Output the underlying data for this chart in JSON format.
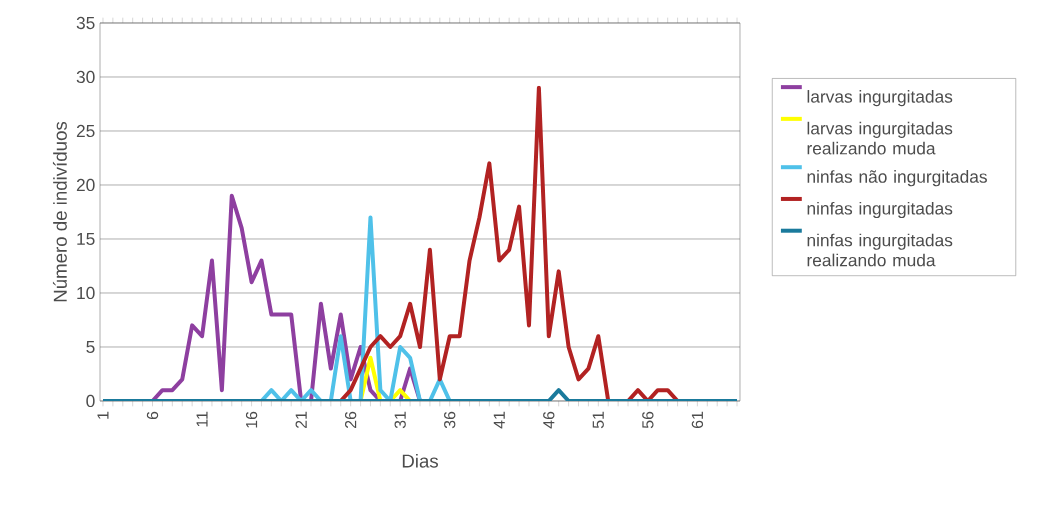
{
  "chart_data": {
    "type": "line",
    "xlabel": "Dias",
    "ylabel": "Número de indivíduos",
    "categories": [
      "1",
      null,
      null,
      null,
      null,
      "6",
      null,
      null,
      null,
      null,
      "11",
      null,
      null,
      null,
      null,
      "16",
      null,
      null,
      null,
      null,
      "21",
      null,
      null,
      null,
      null,
      "26",
      null,
      null,
      null,
      null,
      "31",
      null,
      null,
      null,
      null,
      "36",
      null,
      null,
      null,
      null,
      "41",
      null,
      null,
      null,
      null,
      "46",
      null,
      null,
      null,
      null,
      "51",
      null,
      null,
      null,
      null,
      "56",
      null,
      null,
      null,
      null,
      "61",
      null,
      null,
      null,
      null
    ],
    "ylim": [
      0,
      35
    ],
    "yticks": [
      0,
      5,
      10,
      15,
      20,
      25,
      30,
      35
    ],
    "grid": "y",
    "legend": "right",
    "series": [
      {
        "name": "larvas ingurgitadas",
        "color": "#8e3fa0",
        "values": [
          null,
          null,
          null,
          null,
          null,
          0,
          1,
          1,
          2,
          7,
          6,
          13,
          1,
          19,
          16,
          11,
          13,
          8,
          8,
          8,
          0,
          0,
          9,
          3,
          8,
          2,
          5,
          1,
          0,
          null,
          0,
          3,
          0,
          null,
          null,
          null,
          null,
          null,
          null,
          null,
          null,
          null,
          null,
          null,
          null,
          null,
          null,
          null,
          null,
          null,
          null,
          null,
          null,
          null,
          null,
          null,
          null,
          null,
          null,
          null,
          null,
          null,
          null,
          null,
          null
        ]
      },
      {
        "name": "larvas ingurgitadas realizando muda",
        "color": "#ffff00",
        "values": [
          null,
          null,
          null,
          null,
          null,
          null,
          null,
          null,
          null,
          null,
          null,
          null,
          null,
          null,
          null,
          null,
          null,
          null,
          null,
          null,
          null,
          null,
          null,
          null,
          null,
          null,
          0,
          4,
          0,
          0,
          1,
          0,
          null,
          null,
          null,
          null,
          null,
          null,
          null,
          null,
          null,
          null,
          null,
          null,
          null,
          null,
          null,
          null,
          null,
          null,
          null,
          null,
          null,
          null,
          null,
          null,
          null,
          null,
          null,
          null,
          null,
          null,
          null,
          null,
          null
        ]
      },
      {
        "name": "ninfas não ingurgitadas",
        "color": "#4fc1e9",
        "values": [
          null,
          null,
          null,
          null,
          null,
          null,
          null,
          null,
          null,
          null,
          null,
          null,
          null,
          null,
          null,
          null,
          0,
          1,
          0,
          1,
          0,
          1,
          0,
          0,
          6,
          0,
          0,
          17,
          1,
          0,
          5,
          4,
          0,
          0,
          2,
          0,
          null,
          null,
          null,
          null,
          null,
          null,
          null,
          null,
          null,
          null,
          null,
          null,
          null,
          null,
          null,
          null,
          null,
          null,
          null,
          null,
          null,
          null,
          null,
          null,
          null,
          null,
          null,
          null,
          null
        ]
      },
      {
        "name": "ninfas ingurgitadas",
        "color": "#b22222",
        "values": [
          null,
          null,
          null,
          null,
          null,
          null,
          null,
          null,
          null,
          null,
          null,
          null,
          null,
          null,
          null,
          null,
          null,
          null,
          null,
          null,
          null,
          null,
          null,
          null,
          0,
          1,
          3,
          5,
          6,
          5,
          6,
          9,
          5,
          14,
          2,
          6,
          6,
          13,
          17,
          22,
          13,
          14,
          18,
          7,
          29,
          6,
          12,
          5,
          2,
          3,
          6,
          0,
          null,
          0,
          1,
          0,
          1,
          1,
          0,
          null,
          null,
          null,
          null,
          null,
          null
        ]
      },
      {
        "name": "ninfas ingurgitadas realizando muda",
        "color": "#1a7a9c",
        "values": [
          0,
          0,
          0,
          0,
          0,
          0,
          0,
          0,
          0,
          0,
          0,
          0,
          0,
          0,
          0,
          0,
          0,
          0,
          0,
          0,
          0,
          0,
          0,
          0,
          0,
          0,
          0,
          0,
          0,
          0,
          0,
          0,
          0,
          0,
          0,
          0,
          0,
          0,
          0,
          0,
          0,
          0,
          0,
          0,
          0,
          0,
          1,
          0,
          0,
          0,
          0,
          0,
          0,
          0,
          0,
          0,
          0,
          0,
          0,
          0,
          0,
          0,
          0,
          0,
          0
        ]
      }
    ]
  }
}
